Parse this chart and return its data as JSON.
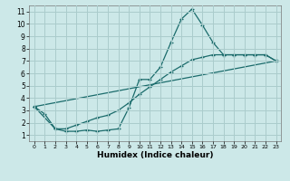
{
  "xlabel": "Humidex (Indice chaleur)",
  "bg_color": "#cce8e8",
  "grid_color": "#aacccc",
  "line_color": "#1a6b6b",
  "xlim": [
    -0.5,
    23.5
  ],
  "ylim": [
    0.5,
    11.5
  ],
  "xticks": [
    0,
    1,
    2,
    3,
    4,
    5,
    6,
    7,
    8,
    9,
    10,
    11,
    12,
    13,
    14,
    15,
    16,
    17,
    18,
    19,
    20,
    21,
    22,
    23
  ],
  "yticks": [
    1,
    2,
    3,
    4,
    5,
    6,
    7,
    8,
    9,
    10,
    11
  ],
  "series1_x": [
    0,
    1,
    2,
    3,
    4,
    5,
    6,
    7,
    8,
    9,
    10,
    11,
    12,
    13,
    14,
    15,
    16,
    17,
    18,
    19,
    20,
    21,
    22,
    23
  ],
  "series1_y": [
    3.3,
    2.7,
    1.5,
    1.3,
    1.3,
    1.4,
    1.3,
    1.4,
    1.5,
    3.2,
    5.5,
    5.5,
    6.5,
    8.5,
    10.4,
    11.2,
    9.9,
    8.5,
    7.5,
    7.5,
    7.5,
    7.5,
    7.5,
    7.0
  ],
  "series2_x": [
    0,
    2,
    3,
    4,
    5,
    6,
    7,
    8,
    9,
    10,
    11,
    12,
    13,
    14,
    15,
    16,
    17,
    18,
    19,
    20,
    21,
    22,
    23
  ],
  "series2_y": [
    3.3,
    1.5,
    1.5,
    1.8,
    2.1,
    2.4,
    2.6,
    3.0,
    3.6,
    4.3,
    4.9,
    5.5,
    6.1,
    6.6,
    7.1,
    7.3,
    7.5,
    7.5,
    7.5,
    7.5,
    7.5,
    7.5,
    7.0
  ],
  "series3_x": [
    0,
    23
  ],
  "series3_y": [
    3.3,
    7.0
  ],
  "xlabel_fontsize": 6.5,
  "xlabel_fontweight": "bold",
  "ytick_fontsize": 5.5,
  "xtick_fontsize": 4.5
}
